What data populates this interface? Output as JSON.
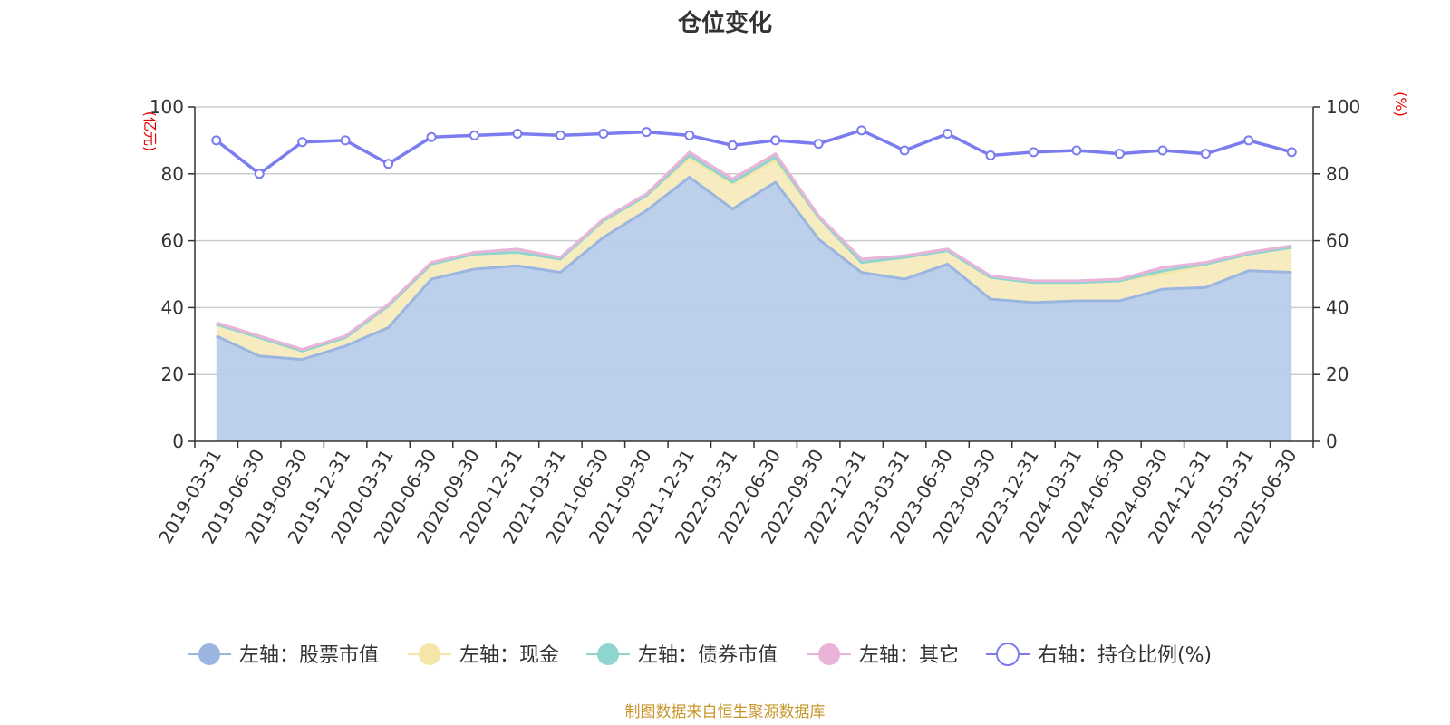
{
  "chart_data": {
    "type": "area",
    "title": "仓位变化",
    "left_axis": {
      "unit": "(亿元)",
      "ylim": [
        0,
        100
      ],
      "ticks": [
        "0",
        "20",
        "40",
        "60",
        "80",
        "100"
      ]
    },
    "right_axis": {
      "unit": "(%)",
      "ylim": [
        0,
        100
      ],
      "ticks": [
        "0",
        "20",
        "40",
        "60",
        "80",
        "100"
      ]
    },
    "grid": true,
    "legend_position": "bottom",
    "categories": [
      "2019-03-31",
      "2019-06-30",
      "2019-09-30",
      "2019-12-31",
      "2020-03-31",
      "2020-06-30",
      "2020-09-30",
      "2020-12-31",
      "2021-03-31",
      "2021-06-30",
      "2021-09-30",
      "2021-12-31",
      "2022-03-31",
      "2022-06-30",
      "2022-09-30",
      "2022-12-31",
      "2023-03-31",
      "2023-06-30",
      "2023-09-30",
      "2023-12-31",
      "2024-03-31",
      "2024-06-30",
      "2024-09-30",
      "2024-12-31",
      "2025-03-31",
      "2025-06-30"
    ],
    "stacked_series": [
      {
        "name": "左轴：股票市值",
        "color": "#9ab6e0",
        "fill": "#b9cdea",
        "values": [
          31.5,
          25.5,
          24.5,
          28.5,
          34,
          48.5,
          51.5,
          52.5,
          50.5,
          61,
          69,
          79,
          69.5,
          77.5,
          60.5,
          50.5,
          48.5,
          53,
          42.5,
          41.5,
          42,
          42,
          45.5,
          46,
          51,
          50.5
        ]
      },
      {
        "name": "左轴：现金",
        "color": "#f5e6a8",
        "fill": "#f7ebbd",
        "values": [
          3.5,
          5.5,
          2.5,
          2.5,
          6.5,
          4.5,
          4.5,
          4,
          4,
          5,
          4.5,
          5.5,
          7.5,
          6.5,
          6.5,
          3,
          6.5,
          4,
          6.5,
          6,
          5.5,
          6,
          4.5,
          7,
          5,
          7.5
        ]
      },
      {
        "name": "左轴：债券市值",
        "color": "#8fd4cf",
        "fill": "#a9dcd8",
        "values": [
          0,
          0,
          0,
          0,
          0,
          0,
          0,
          0,
          0,
          0,
          0,
          1,
          0.5,
          1,
          0,
          0,
          0,
          0,
          0,
          0,
          0,
          0,
          1,
          0,
          0,
          0
        ]
      },
      {
        "name": "左轴：其它",
        "color": "#e9b4d8",
        "fill": "#efc6e1",
        "values": [
          0.5,
          0.5,
          0.5,
          0.5,
          0.5,
          0.5,
          0.5,
          1,
          0.5,
          0.5,
          0.5,
          1,
          1,
          1,
          0.5,
          1,
          0.5,
          0.5,
          0.5,
          0.5,
          0.5,
          0.5,
          1,
          0.5,
          0.5,
          0.5
        ]
      }
    ],
    "line_series": {
      "name": "右轴：持仓比例(%)",
      "color": "#7b7cf0",
      "values": [
        90,
        80,
        89.5,
        90,
        83,
        91,
        91.5,
        92,
        91.5,
        92,
        92.5,
        91.5,
        88.5,
        90,
        89,
        93,
        87,
        92,
        85.5,
        86.5,
        87,
        86,
        87,
        86,
        90,
        86.5
      ]
    }
  },
  "source_note": "制图数据来自恒生聚源数据库"
}
